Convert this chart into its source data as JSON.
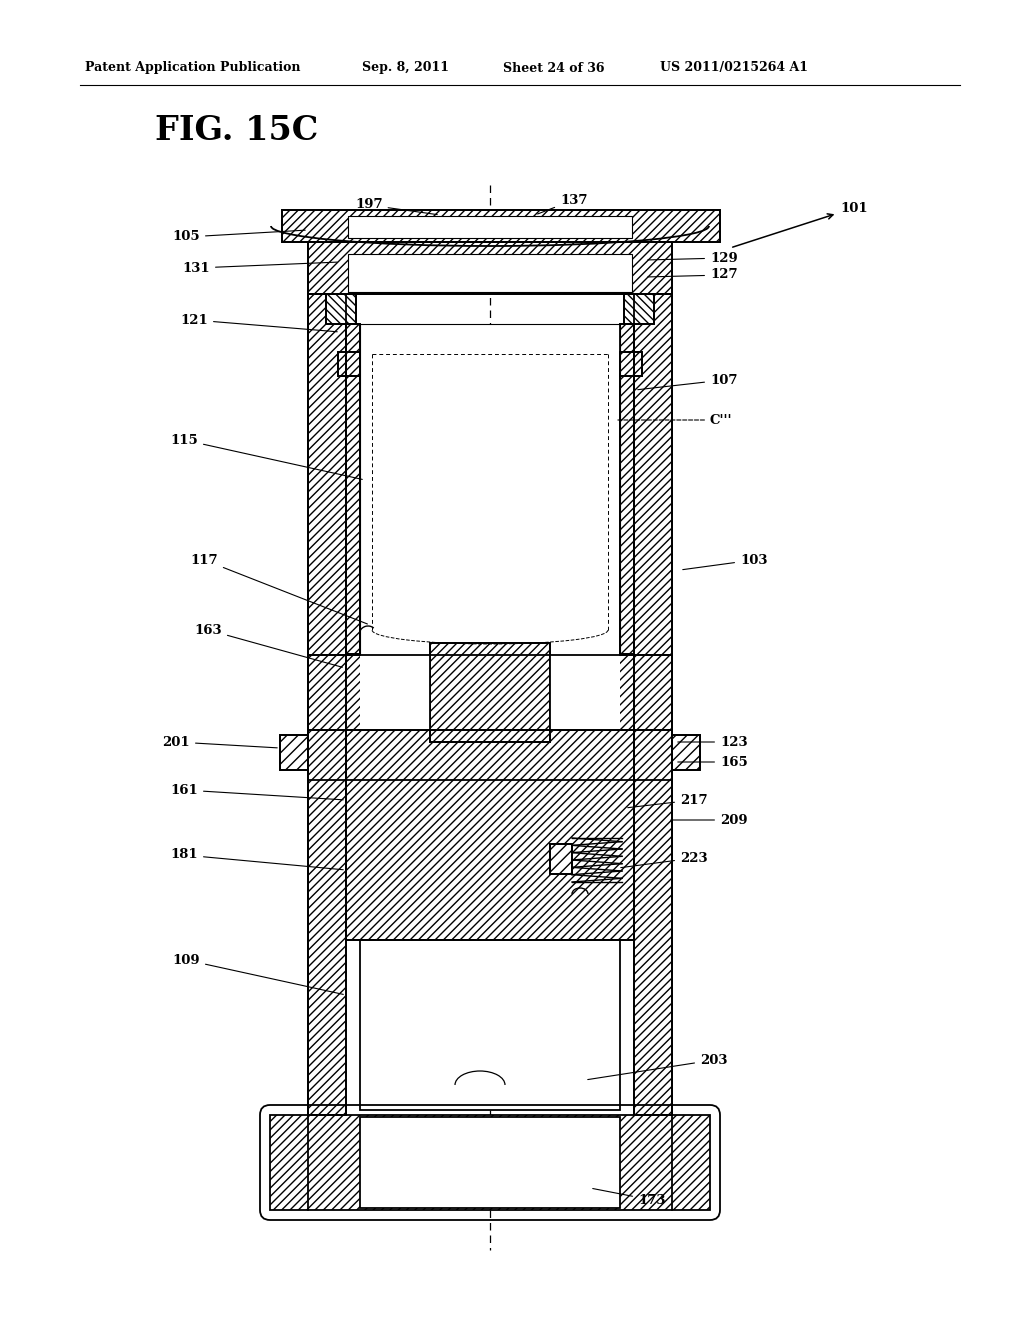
{
  "patent_header_left": "Patent Application Publication",
  "patent_header_date": "Sep. 8, 2011",
  "patent_header_sheet": "Sheet 24 of 36",
  "patent_header_right": "US 2011/0215264 A1",
  "fig_label": "FIG. 15C",
  "background_color": "#ffffff",
  "line_color": "#000000"
}
